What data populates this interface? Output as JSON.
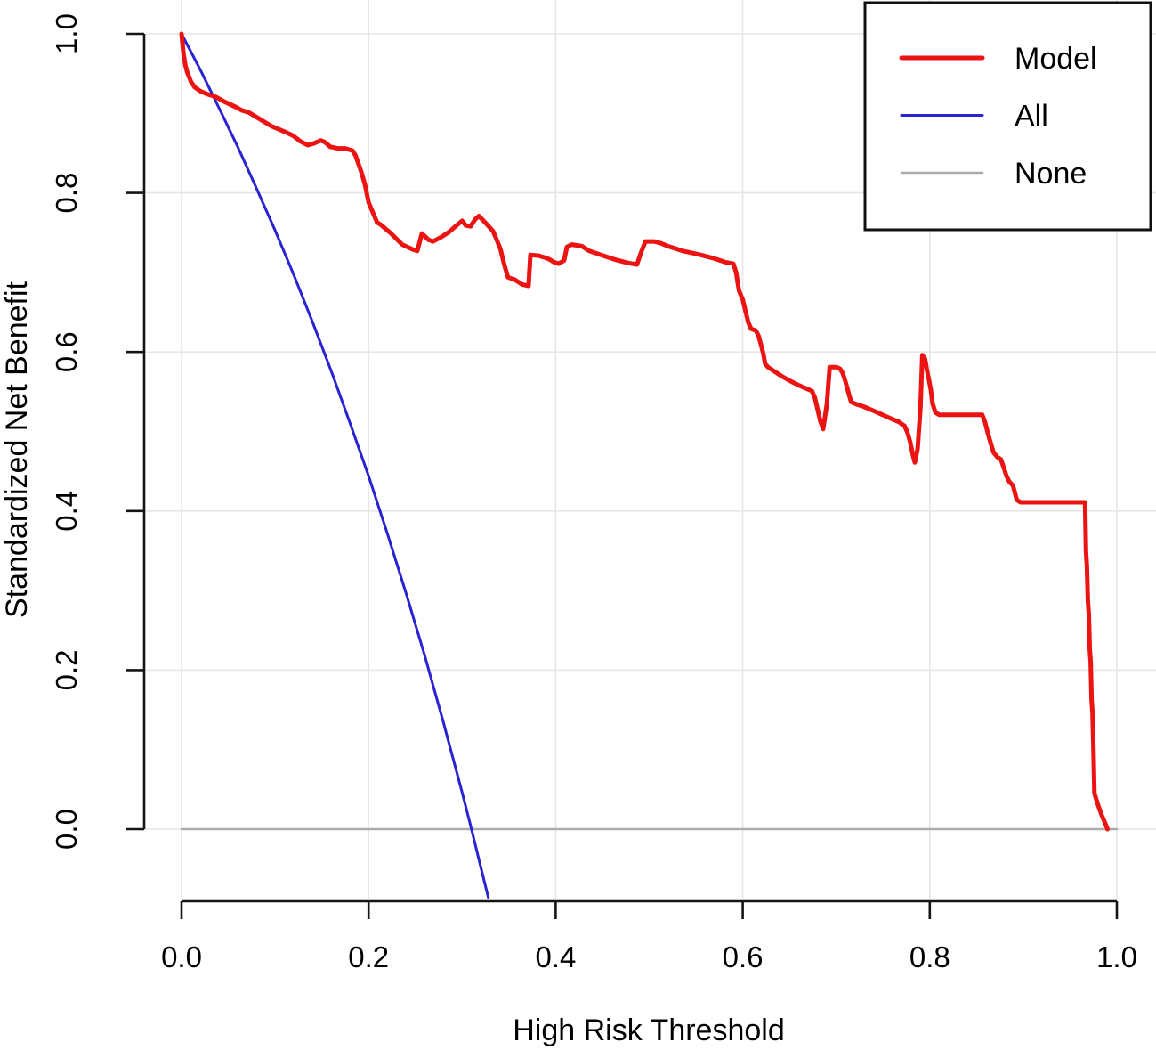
{
  "figure": {
    "background": "#ffffff",
    "axis_color": "#151515",
    "grid_color": "#e6e6e6"
  },
  "legend": {
    "items": [
      {
        "label": "Model",
        "color": "#ec1313",
        "width": 5
      },
      {
        "label": "All",
        "color": "#2a23d1",
        "width": 3
      },
      {
        "label": "None",
        "color": "#ababab",
        "width": 2.5
      }
    ]
  },
  "chart_data": {
    "type": "line",
    "title": "",
    "xlabel": "High Risk Threshold",
    "ylabel": "Standardized Net Benefit",
    "xlim": [
      0,
      1
    ],
    "ylim": [
      -0.09,
      1.0
    ],
    "grid": true,
    "legend_position": "top-right",
    "x_tick_values": [
      0,
      0.2,
      0.4,
      0.6,
      0.8,
      1.0
    ],
    "x_tick_labels": [
      "0.0",
      "0.2",
      "0.4",
      "0.6",
      "0.8",
      "1.0"
    ],
    "y_tick_values": [
      0,
      0.2,
      0.4,
      0.6,
      0.8,
      1.0
    ],
    "y_tick_labels": [
      "0.0",
      "0.2",
      "0.4",
      "0.6",
      "0.8",
      "1.0"
    ],
    "series": [
      {
        "name": "None",
        "color": "#ababab",
        "width": 2.5,
        "points": [
          [
            0.0,
            0.0
          ],
          [
            1.0,
            0.0
          ]
        ]
      },
      {
        "name": "All",
        "color": "#2a23d1",
        "width": 3,
        "points": [
          [
            0.0,
            1.0
          ],
          [
            0.02,
            0.955
          ],
          [
            0.04,
            0.907
          ],
          [
            0.06,
            0.858
          ],
          [
            0.08,
            0.806
          ],
          [
            0.1,
            0.753
          ],
          [
            0.12,
            0.697
          ],
          [
            0.14,
            0.638
          ],
          [
            0.16,
            0.576
          ],
          [
            0.18,
            0.511
          ],
          [
            0.2,
            0.444
          ],
          [
            0.22,
            0.372
          ],
          [
            0.24,
            0.297
          ],
          [
            0.26,
            0.218
          ],
          [
            0.28,
            0.134
          ],
          [
            0.3,
            0.046
          ],
          [
            0.31,
            0.0
          ],
          [
            0.32,
            -0.048
          ],
          [
            0.328,
            -0.086
          ]
        ]
      },
      {
        "name": "Model",
        "color": "#ec1313",
        "width": 5,
        "points": [
          [
            0.0,
            1.0
          ],
          [
            0.002,
            0.976
          ],
          [
            0.004,
            0.961
          ],
          [
            0.006,
            0.952
          ],
          [
            0.008,
            0.946
          ],
          [
            0.01,
            0.94
          ],
          [
            0.014,
            0.933
          ],
          [
            0.02,
            0.928
          ],
          [
            0.028,
            0.924
          ],
          [
            0.036,
            0.921
          ],
          [
            0.047,
            0.914
          ],
          [
            0.058,
            0.908
          ],
          [
            0.064,
            0.904
          ],
          [
            0.072,
            0.901
          ],
          [
            0.082,
            0.894
          ],
          [
            0.096,
            0.884
          ],
          [
            0.11,
            0.877
          ],
          [
            0.119,
            0.872
          ],
          [
            0.127,
            0.865
          ],
          [
            0.135,
            0.86
          ],
          [
            0.141,
            0.862
          ],
          [
            0.149,
            0.866
          ],
          [
            0.153,
            0.864
          ],
          [
            0.159,
            0.858
          ],
          [
            0.167,
            0.856
          ],
          [
            0.175,
            0.856
          ],
          [
            0.183,
            0.853
          ],
          [
            0.186,
            0.847
          ],
          [
            0.192,
            0.827
          ],
          [
            0.196,
            0.811
          ],
          [
            0.2,
            0.788
          ],
          [
            0.205,
            0.774
          ],
          [
            0.209,
            0.763
          ],
          [
            0.213,
            0.76
          ],
          [
            0.224,
            0.749
          ],
          [
            0.236,
            0.735
          ],
          [
            0.247,
            0.729
          ],
          [
            0.252,
            0.727
          ],
          [
            0.257,
            0.749
          ],
          [
            0.264,
            0.741
          ],
          [
            0.269,
            0.739
          ],
          [
            0.277,
            0.744
          ],
          [
            0.285,
            0.75
          ],
          [
            0.296,
            0.761
          ],
          [
            0.3,
            0.765
          ],
          [
            0.304,
            0.759
          ],
          [
            0.309,
            0.758
          ],
          [
            0.314,
            0.767
          ],
          [
            0.318,
            0.771
          ],
          [
            0.326,
            0.761
          ],
          [
            0.333,
            0.752
          ],
          [
            0.337,
            0.741
          ],
          [
            0.341,
            0.729
          ],
          [
            0.345,
            0.71
          ],
          [
            0.349,
            0.694
          ],
          [
            0.356,
            0.691
          ],
          [
            0.364,
            0.685
          ],
          [
            0.371,
            0.683
          ],
          [
            0.373,
            0.722
          ],
          [
            0.382,
            0.721
          ],
          [
            0.39,
            0.718
          ],
          [
            0.394,
            0.716
          ],
          [
            0.398,
            0.713
          ],
          [
            0.403,
            0.711
          ],
          [
            0.409,
            0.715
          ],
          [
            0.412,
            0.732
          ],
          [
            0.417,
            0.735
          ],
          [
            0.428,
            0.733
          ],
          [
            0.436,
            0.727
          ],
          [
            0.451,
            0.721
          ],
          [
            0.464,
            0.716
          ],
          [
            0.477,
            0.712
          ],
          [
            0.487,
            0.71
          ],
          [
            0.491,
            0.724
          ],
          [
            0.496,
            0.739
          ],
          [
            0.505,
            0.739
          ],
          [
            0.512,
            0.737
          ],
          [
            0.52,
            0.733
          ],
          [
            0.536,
            0.727
          ],
          [
            0.552,
            0.723
          ],
          [
            0.568,
            0.718
          ],
          [
            0.581,
            0.713
          ],
          [
            0.59,
            0.711
          ],
          [
            0.593,
            0.7
          ],
          [
            0.596,
            0.677
          ],
          [
            0.6,
            0.666
          ],
          [
            0.603,
            0.651
          ],
          [
            0.606,
            0.637
          ],
          [
            0.609,
            0.629
          ],
          [
            0.614,
            0.627
          ],
          [
            0.617,
            0.62
          ],
          [
            0.62,
            0.607
          ],
          [
            0.622,
            0.598
          ],
          [
            0.624,
            0.585
          ],
          [
            0.627,
            0.581
          ],
          [
            0.632,
            0.577
          ],
          [
            0.641,
            0.57
          ],
          [
            0.65,
            0.564
          ],
          [
            0.66,
            0.558
          ],
          [
            0.67,
            0.553
          ],
          [
            0.674,
            0.551
          ],
          [
            0.677,
            0.543
          ],
          [
            0.68,
            0.528
          ],
          [
            0.683,
            0.513
          ],
          [
            0.686,
            0.503
          ],
          [
            0.69,
            0.535
          ],
          [
            0.693,
            0.581
          ],
          [
            0.7,
            0.581
          ],
          [
            0.704,
            0.579
          ],
          [
            0.707,
            0.573
          ],
          [
            0.71,
            0.562
          ],
          [
            0.713,
            0.549
          ],
          [
            0.716,
            0.537
          ],
          [
            0.722,
            0.534
          ],
          [
            0.73,
            0.531
          ],
          [
            0.742,
            0.525
          ],
          [
            0.755,
            0.518
          ],
          [
            0.767,
            0.512
          ],
          [
            0.773,
            0.507
          ],
          [
            0.776,
            0.499
          ],
          [
            0.779,
            0.487
          ],
          [
            0.782,
            0.47
          ],
          [
            0.784,
            0.461
          ],
          [
            0.787,
            0.478
          ],
          [
            0.79,
            0.53
          ],
          [
            0.792,
            0.596
          ],
          [
            0.795,
            0.591
          ],
          [
            0.797,
            0.577
          ],
          [
            0.799,
            0.566
          ],
          [
            0.801,
            0.553
          ],
          [
            0.803,
            0.535
          ],
          [
            0.806,
            0.524
          ],
          [
            0.81,
            0.521
          ],
          [
            0.856,
            0.521
          ],
          [
            0.859,
            0.512
          ],
          [
            0.862,
            0.498
          ],
          [
            0.865,
            0.486
          ],
          [
            0.868,
            0.474
          ],
          [
            0.872,
            0.468
          ],
          [
            0.876,
            0.465
          ],
          [
            0.879,
            0.455
          ],
          [
            0.882,
            0.444
          ],
          [
            0.885,
            0.437
          ],
          [
            0.889,
            0.432
          ],
          [
            0.893,
            0.414
          ],
          [
            0.897,
            0.411
          ],
          [
            0.966,
            0.411
          ],
          [
            0.967,
            0.35
          ],
          [
            0.968,
            0.33
          ],
          [
            0.969,
            0.288
          ],
          [
            0.97,
            0.27
          ],
          [
            0.971,
            0.227
          ],
          [
            0.972,
            0.21
          ],
          [
            0.973,
            0.163
          ],
          [
            0.974,
            0.145
          ],
          [
            0.975,
            0.101
          ],
          [
            0.976,
            0.045
          ],
          [
            0.98,
            0.03
          ],
          [
            0.984,
            0.017
          ],
          [
            0.988,
            0.006
          ],
          [
            0.99,
            0.0
          ]
        ]
      }
    ]
  }
}
